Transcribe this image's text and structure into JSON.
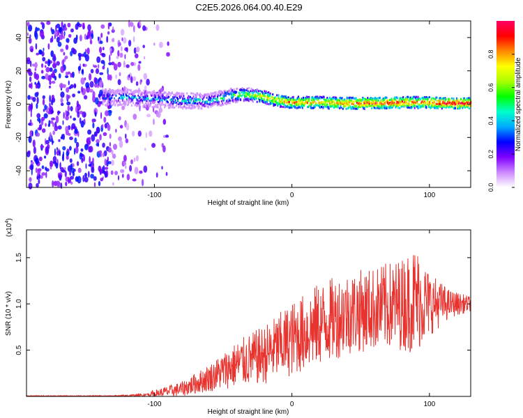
{
  "chart_data": [
    {
      "type": "heatmap",
      "title": "C2E5.2026.064.00.40.E29",
      "xlabel": "Height of straight line (km)",
      "ylabel": "Frequency (Hz)",
      "xlim": [
        -193,
        130
      ],
      "ylim": [
        -50,
        50
      ],
      "x_ticks": [
        -100,
        0,
        100
      ],
      "y_ticks": [
        -40,
        -20,
        0,
        20,
        40
      ],
      "colorbar": {
        "label": "Normalized spectral amplitude",
        "range": [
          0,
          1
        ],
        "ticks": [
          "0.0",
          "0.2",
          "0.4",
          "0.6",
          "0.8"
        ],
        "colors": [
          "#ffffff",
          "#cc88ff",
          "#7f00ff",
          "#0000ff",
          "#00aaff",
          "#00ffcc",
          "#00ff00",
          "#aaff00",
          "#ffff00",
          "#ff8800",
          "#ff0000",
          "#ff0066"
        ]
      },
      "ridge": {
        "x": [
          -138,
          -120,
          -100,
          -80,
          -60,
          -45,
          -35,
          -25,
          -10,
          0,
          20,
          40,
          60,
          80,
          90,
          100,
          110,
          130
        ],
        "freq": [
          4,
          4,
          3,
          2,
          2,
          5,
          6,
          5,
          2,
          1,
          1,
          0.5,
          0.5,
          1,
          1,
          1,
          0.5,
          0.5
        ],
        "amplitude": [
          0.3,
          0.4,
          0.35,
          0.45,
          0.45,
          0.55,
          0.6,
          0.7,
          0.8,
          0.85,
          0.8,
          0.85,
          0.9,
          0.9,
          0.85,
          0.9,
          0.95,
          0.95
        ]
      },
      "noise_region_x": [
        -193,
        -90
      ]
    },
    {
      "type": "line",
      "xlabel": "Height of straight line (km)",
      "ylabel": "SNR (10 * v/v)",
      "y_multiplier": "(x10",
      "y_multiplier_exp": "4",
      "y_multiplier_close": ")",
      "xlim": [
        -193,
        130
      ],
      "ylim": [
        0,
        1.8
      ],
      "x_ticks": [
        -100,
        0,
        100
      ],
      "y_ticks": [
        "0.5",
        "1.0",
        "1.5"
      ],
      "line_color": "#e8332f",
      "envelope": {
        "x": [
          -193,
          -130,
          -110,
          -100,
          -80,
          -60,
          -40,
          -20,
          0,
          20,
          40,
          60,
          80,
          90,
          100,
          115,
          130
        ],
        "mean": [
          0.0,
          0.0,
          0.01,
          0.03,
          0.08,
          0.2,
          0.35,
          0.45,
          0.62,
          0.78,
          0.9,
          0.95,
          1.0,
          1.05,
          1.0,
          1.0,
          1.0
        ],
        "spread": [
          0.01,
          0.01,
          0.02,
          0.04,
          0.08,
          0.15,
          0.25,
          0.32,
          0.4,
          0.45,
          0.45,
          0.45,
          0.5,
          0.6,
          0.35,
          0.15,
          0.08
        ]
      }
    }
  ]
}
